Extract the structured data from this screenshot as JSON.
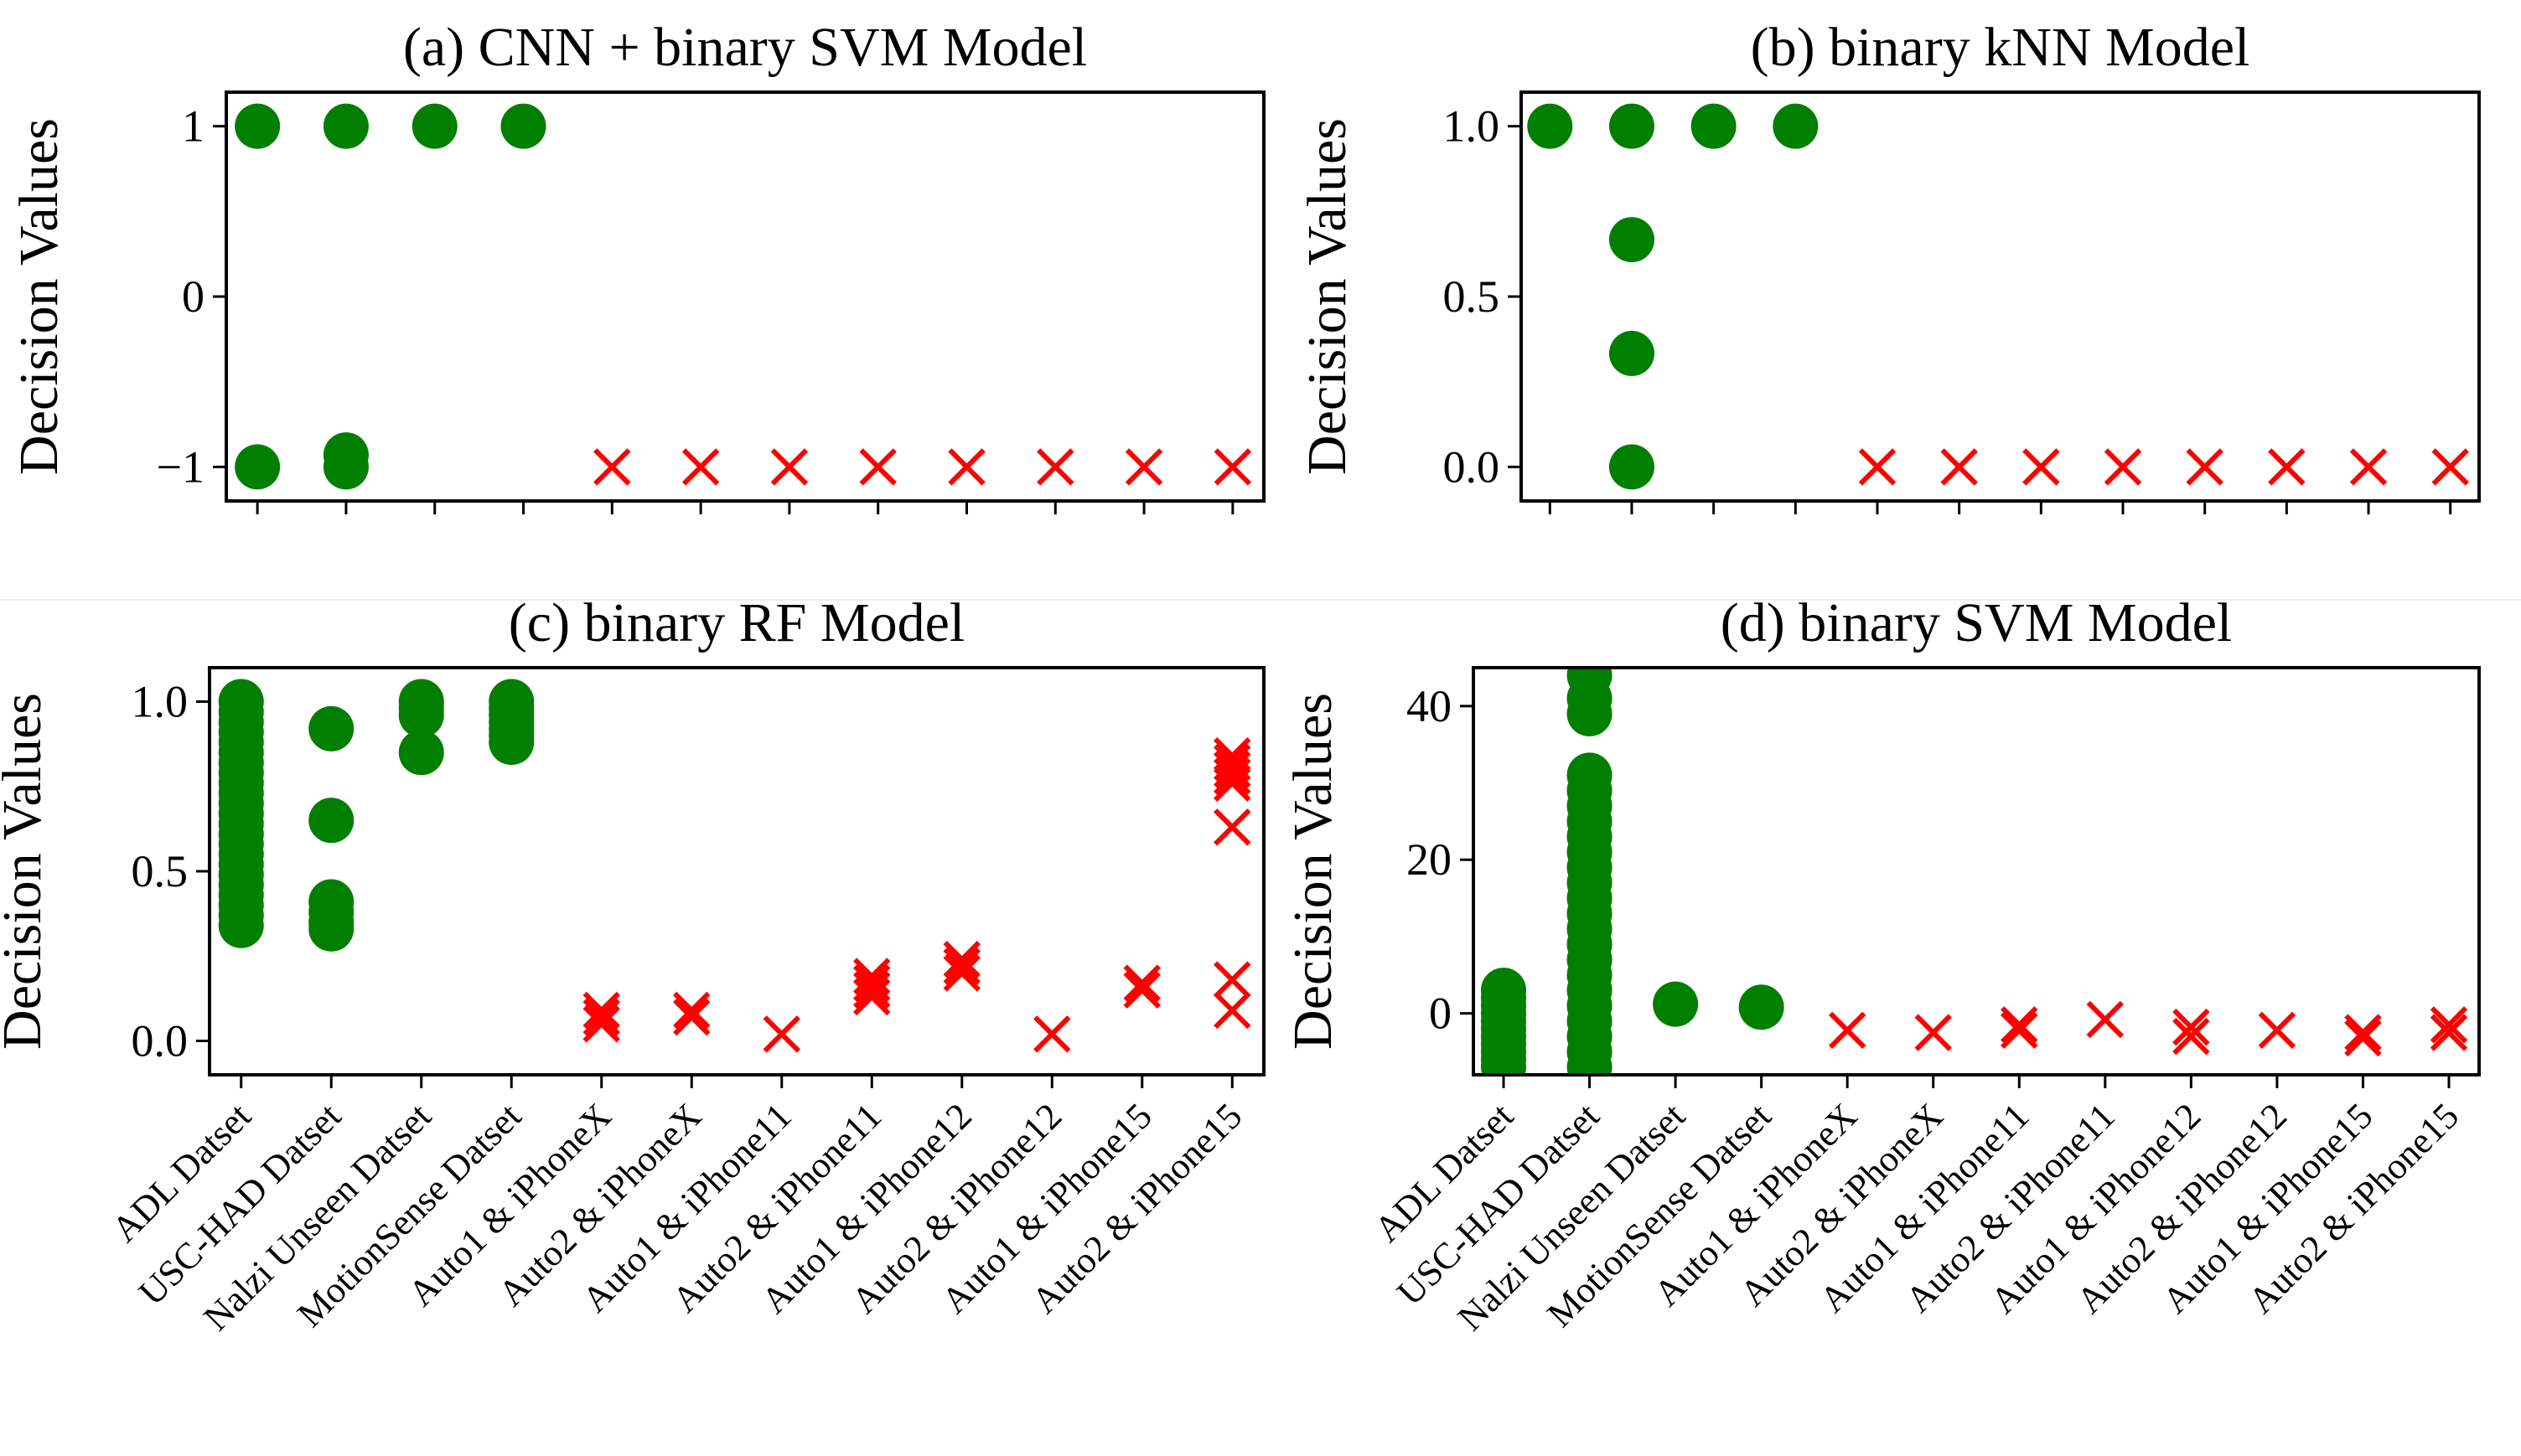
{
  "chart_data": [
    {
      "id": "a",
      "type": "scatter",
      "title": "(a) CNN + binary SVM Model",
      "ylabel": "Decision Values",
      "ylim": [
        -1.2,
        1.2
      ],
      "yticks": [
        1,
        0,
        -1
      ],
      "ytick_labels": [
        "1",
        "0",
        "−1"
      ],
      "show_category_labels": false,
      "categories": [
        "ADL Datset",
        "USC-HAD Datset",
        "Nalzi Unseen Datset",
        "MotionSense Datset",
        "Auto1 & iPhoneX",
        "Auto2 & iPhoneX",
        "Auto1 & iPhone11",
        "Auto2 & iPhone11",
        "Auto1 & iPhone12",
        "Auto2 & iPhone12",
        "Auto1 & iPhone15",
        "Auto2 & iPhone15"
      ],
      "series": [
        {
          "name": "green-circle",
          "marker": "circle",
          "color": "#007f00",
          "points": [
            [
              0,
              1
            ],
            [
              0,
              -1
            ],
            [
              1,
              1
            ],
            [
              1,
              -0.93
            ],
            [
              1,
              -1
            ],
            [
              2,
              1
            ],
            [
              3,
              1
            ]
          ]
        },
        {
          "name": "red-x",
          "marker": "x",
          "color": "#ff0000",
          "points": [
            [
              4,
              -1
            ],
            [
              5,
              -1
            ],
            [
              6,
              -1
            ],
            [
              7,
              -1
            ],
            [
              8,
              -1
            ],
            [
              9,
              -1
            ],
            [
              10,
              -1
            ],
            [
              11,
              -1
            ]
          ]
        }
      ]
    },
    {
      "id": "b",
      "type": "scatter",
      "title": "(b) binary kNN Model",
      "ylabel": "Decision Values",
      "ylim": [
        -0.1,
        1.1
      ],
      "yticks": [
        1.0,
        0.5,
        0.0
      ],
      "ytick_labels": [
        "1.0",
        "0.5",
        "0.0"
      ],
      "show_category_labels": false,
      "categories": [
        "ADL Datset",
        "USC-HAD Datset",
        "Nalzi Unseen Datset",
        "MotionSense Datset",
        "Auto1 & iPhoneX",
        "Auto2 & iPhoneX",
        "Auto1 & iPhone11",
        "Auto2 & iPhone11",
        "Auto1 & iPhone12",
        "Auto2 & iPhone12",
        "Auto1 & iPhone15",
        "Auto2 & iPhone15"
      ],
      "series": [
        {
          "name": "green-circle",
          "marker": "circle",
          "color": "#007f00",
          "points": [
            [
              0,
              1.0
            ],
            [
              1,
              1.0
            ],
            [
              1,
              0.667
            ],
            [
              1,
              0.333
            ],
            [
              1,
              0.0
            ],
            [
              2,
              1.0
            ],
            [
              3,
              1.0
            ]
          ]
        },
        {
          "name": "red-x",
          "marker": "x",
          "color": "#ff0000",
          "points": [
            [
              4,
              0
            ],
            [
              5,
              0
            ],
            [
              6,
              0
            ],
            [
              7,
              0
            ],
            [
              8,
              0
            ],
            [
              9,
              0
            ],
            [
              10,
              0
            ],
            [
              11,
              0
            ]
          ]
        }
      ]
    },
    {
      "id": "c",
      "type": "scatter",
      "title": "(c) binary RF Model",
      "ylabel": "Decision Values",
      "ylim": [
        -0.1,
        1.1
      ],
      "yticks": [
        1.0,
        0.5,
        0.0
      ],
      "ytick_labels": [
        "1.0",
        "0.5",
        "0.0"
      ],
      "show_category_labels": true,
      "categories": [
        "ADL Datset",
        "USC-HAD Datset",
        "Nalzi Unseen Datset",
        "MotionSense Datset",
        "Auto1 & iPhoneX",
        "Auto2 & iPhoneX",
        "Auto1 & iPhone11",
        "Auto2 & iPhone11",
        "Auto1 & iPhone12",
        "Auto2 & iPhone12",
        "Auto1 & iPhone15",
        "Auto2 & iPhone15"
      ],
      "series": [
        {
          "name": "green-circle",
          "marker": "circle",
          "color": "#007f00",
          "points": [
            [
              0,
              1.0
            ],
            [
              0,
              0.97
            ],
            [
              0,
              0.94
            ],
            [
              0,
              0.91
            ],
            [
              0,
              0.88
            ],
            [
              0,
              0.85
            ],
            [
              0,
              0.82
            ],
            [
              0,
              0.79
            ],
            [
              0,
              0.76
            ],
            [
              0,
              0.73
            ],
            [
              0,
              0.7
            ],
            [
              0,
              0.67
            ],
            [
              0,
              0.64
            ],
            [
              0,
              0.61
            ],
            [
              0,
              0.58
            ],
            [
              0,
              0.55
            ],
            [
              0,
              0.52
            ],
            [
              0,
              0.49
            ],
            [
              0,
              0.46
            ],
            [
              0,
              0.43
            ],
            [
              0,
              0.4
            ],
            [
              0,
              0.37
            ],
            [
              0,
              0.34
            ],
            [
              1,
              0.92
            ],
            [
              1,
              0.65
            ],
            [
              1,
              0.41
            ],
            [
              1,
              0.38
            ],
            [
              1,
              0.35
            ],
            [
              1,
              0.33
            ],
            [
              2,
              1.0
            ],
            [
              2,
              0.98
            ],
            [
              2,
              0.96
            ],
            [
              2,
              0.85
            ],
            [
              3,
              1.0
            ],
            [
              3,
              0.98
            ],
            [
              3,
              0.96
            ],
            [
              3,
              0.94
            ],
            [
              3,
              0.92
            ],
            [
              3,
              0.9
            ],
            [
              3,
              0.88
            ]
          ]
        },
        {
          "name": "red-x",
          "marker": "x",
          "color": "#ff0000",
          "points": [
            [
              4,
              0.09
            ],
            [
              4,
              0.07
            ],
            [
              4,
              0.05
            ],
            [
              5,
              0.09
            ],
            [
              5,
              0.07
            ],
            [
              6,
              0.02
            ],
            [
              7,
              0.19
            ],
            [
              7,
              0.17
            ],
            [
              7,
              0.15
            ],
            [
              7,
              0.13
            ],
            [
              8,
              0.24
            ],
            [
              8,
              0.22
            ],
            [
              8,
              0.2
            ],
            [
              9,
              0.02
            ],
            [
              10,
              0.17
            ],
            [
              10,
              0.15
            ],
            [
              11,
              0.84
            ],
            [
              11,
              0.82
            ],
            [
              11,
              0.8
            ],
            [
              11,
              0.78
            ],
            [
              11,
              0.76
            ],
            [
              11,
              0.63
            ],
            [
              11,
              0.18
            ],
            [
              11,
              0.09
            ]
          ]
        }
      ]
    },
    {
      "id": "d",
      "type": "scatter",
      "title": "(d) binary SVM Model",
      "ylabel": "Decision Values",
      "ylim": [
        -8,
        45
      ],
      "yticks": [
        40,
        20,
        0
      ],
      "ytick_labels": [
        "40",
        "20",
        "0"
      ],
      "show_category_labels": true,
      "categories": [
        "ADL Datset",
        "USC-HAD Datset",
        "Nalzi Unseen Datset",
        "MotionSense Datset",
        "Auto1 & iPhoneX",
        "Auto2 & iPhoneX",
        "Auto1 & iPhone11",
        "Auto2 & iPhone11",
        "Auto1 & iPhone12",
        "Auto2 & iPhone12",
        "Auto1 & iPhone15",
        "Auto2 & iPhone15"
      ],
      "series": [
        {
          "name": "green-circle",
          "marker": "circle",
          "color": "#007f00",
          "points": [
            [
              0,
              3
            ],
            [
              0,
              2
            ],
            [
              0,
              1
            ],
            [
              0,
              0
            ],
            [
              0,
              -1
            ],
            [
              0,
              -2
            ],
            [
              0,
              -3
            ],
            [
              0,
              -4
            ],
            [
              0,
              -5
            ],
            [
              0,
              -6
            ],
            [
              0,
              -7
            ],
            [
              1,
              44
            ],
            [
              1,
              41
            ],
            [
              1,
              39
            ],
            [
              1,
              31
            ],
            [
              1,
              29
            ],
            [
              1,
              27
            ],
            [
              1,
              25
            ],
            [
              1,
              23
            ],
            [
              1,
              21
            ],
            [
              1,
              19
            ],
            [
              1,
              17
            ],
            [
              1,
              15
            ],
            [
              1,
              13
            ],
            [
              1,
              11
            ],
            [
              1,
              9
            ],
            [
              1,
              7
            ],
            [
              1,
              5
            ],
            [
              1,
              3
            ],
            [
              1,
              1
            ],
            [
              1,
              -1
            ],
            [
              1,
              -3
            ],
            [
              1,
              -5
            ],
            [
              1,
              -7
            ],
            [
              2,
              1.2
            ],
            [
              3,
              0.8
            ]
          ]
        },
        {
          "name": "red-x",
          "marker": "x",
          "color": "#ff0000",
          "points": [
            [
              4,
              -2.2
            ],
            [
              5,
              -2.5
            ],
            [
              6,
              -1.5
            ],
            [
              6,
              -2.2
            ],
            [
              7,
              -0.8
            ],
            [
              8,
              -1.8
            ],
            [
              8,
              -3.0
            ],
            [
              9,
              -2.2
            ],
            [
              10,
              -2.5
            ],
            [
              10,
              -3.2
            ],
            [
              11,
              -1.5
            ],
            [
              11,
              -2.5
            ]
          ]
        }
      ]
    }
  ]
}
